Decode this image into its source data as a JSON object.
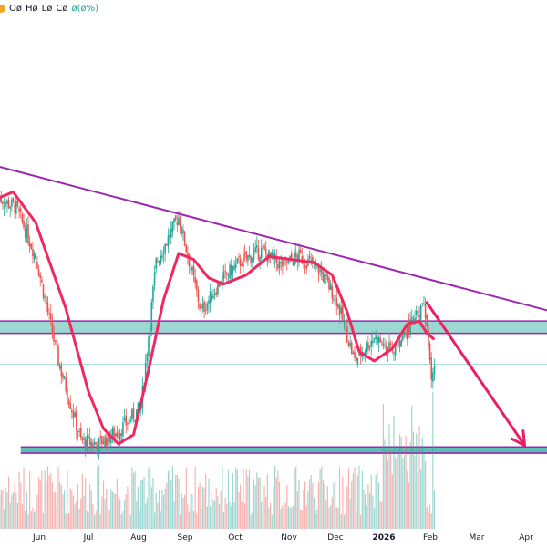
{
  "legend": {
    "o": "Oø",
    "h": "Hø",
    "l": "Lø",
    "c": "Cø",
    "chg": "ø(ø%)",
    "symbol_icon": "symbol-dot-icon"
  },
  "colors": {
    "up": "#26a69a",
    "down": "#ef5350",
    "ma": "#f0285f",
    "trendline": "#9c27b0",
    "zone_fill": "#4db6ac",
    "arrow": "#e91e63"
  },
  "chart_data": {
    "type": "candlestick",
    "title": "",
    "xlabel": "",
    "ylabel": "",
    "x_ticks": [
      "Jun",
      "Jul",
      "Aug",
      "Sep",
      "Oct",
      "Nov",
      "Dec",
      "2026",
      "Feb",
      "Mar",
      "Apr"
    ],
    "bold_ticks": [
      "2026"
    ],
    "price_path_day": [
      0,
      12,
      25,
      40,
      55,
      66,
      80,
      95,
      105,
      120,
      135,
      148,
      160,
      175,
      188,
      200,
      213,
      225,
      237,
      250,
      262,
      275,
      283,
      288,
      290
    ],
    "price_path_val": [
      0.83,
      0.8,
      0.64,
      0.3,
      0.04,
      0.03,
      0.07,
      0.15,
      0.62,
      0.77,
      0.46,
      0.56,
      0.62,
      0.66,
      0.61,
      0.64,
      0.6,
      0.5,
      0.3,
      0.38,
      0.33,
      0.42,
      0.48,
      0.26,
      0.28
    ],
    "ma_path_day": [
      0,
      10,
      25,
      45,
      60,
      70,
      80,
      90,
      100,
      110,
      120,
      130,
      140,
      150,
      165,
      180,
      195,
      210,
      222,
      232,
      240,
      250,
      262,
      272,
      280,
      285,
      290
    ],
    "ma_path_val": [
      0.83,
      0.85,
      0.75,
      0.47,
      0.2,
      0.08,
      0.03,
      0.06,
      0.27,
      0.5,
      0.65,
      0.63,
      0.57,
      0.55,
      0.58,
      0.64,
      0.63,
      0.62,
      0.58,
      0.46,
      0.33,
      0.3,
      0.34,
      0.42,
      0.43,
      0.39,
      0.37
    ],
    "trendline": {
      "start_day": -52,
      "start_val": 1.0,
      "end_day": 423,
      "end_val": 0.39
    },
    "resistance_zone": {
      "low_val": 0.39,
      "high_val": 0.43
    },
    "support_zone": {
      "low_val": 0.0,
      "high_val": 0.02
    },
    "projection": {
      "from_day": 285,
      "from_val": 0.49,
      "to_day": 350,
      "to_val": 0.025
    },
    "last_price_line_val": 0.29
  }
}
